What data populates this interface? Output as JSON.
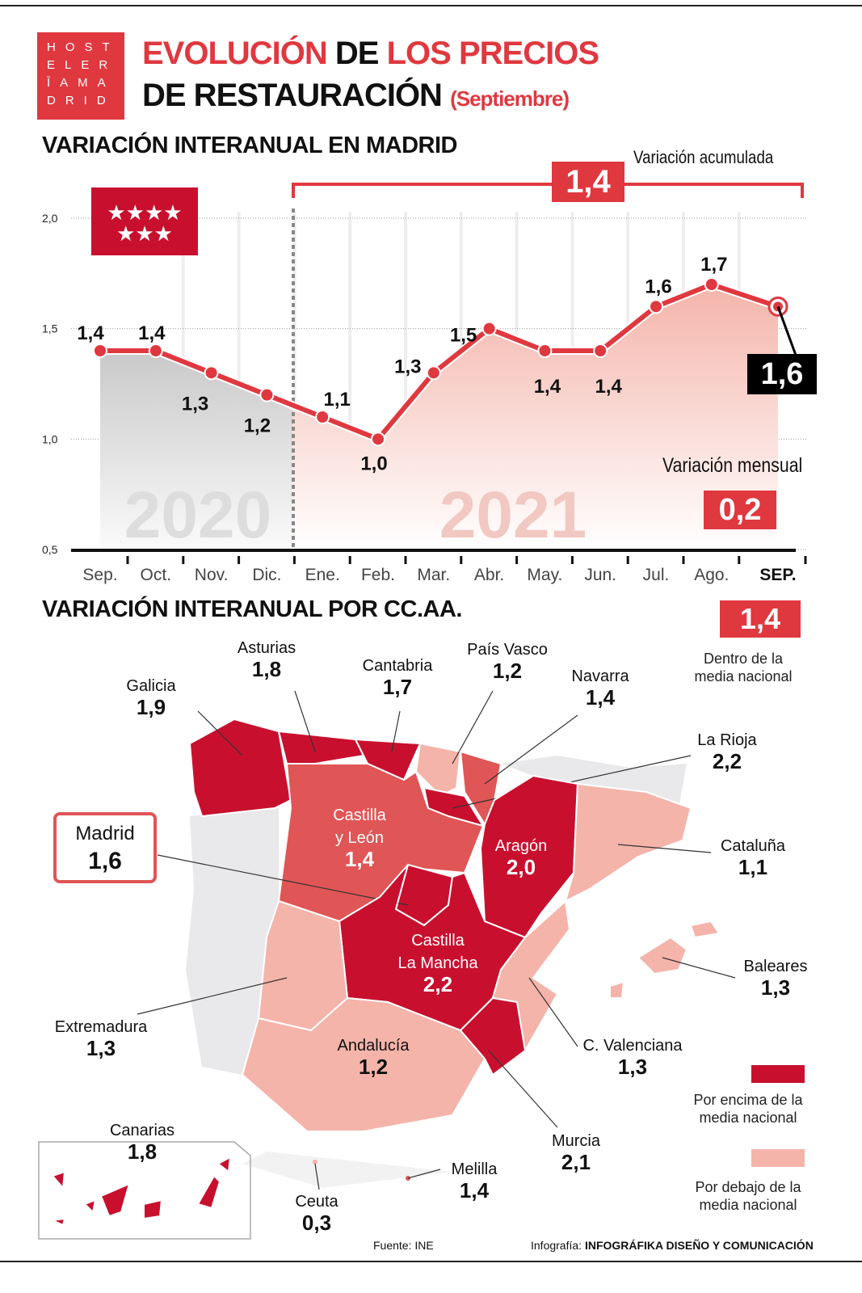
{
  "logo": {
    "lines": [
      "HOST",
      "ELER",
      "ĪAMA",
      "DRID"
    ]
  },
  "title": {
    "part1": "EVOLUCIÓN",
    "part2": "DE",
    "part3": "LOS PRECIOS",
    "line2": "DE RESTAURACIÓN",
    "month": "(Septiembre)"
  },
  "madrid_section": {
    "title": "VARIACIÓN INTERANUAL EN MADRID",
    "accumulated_label": "Variación acumulada",
    "accumulated_value": "1,4",
    "monthly_label": "Variación mensual",
    "monthly_value": "0,2",
    "current_value": "1,6",
    "year_labels": [
      "2020",
      "2021"
    ]
  },
  "chart_data": {
    "type": "line",
    "title": "VARIACIÓN INTERANUAL EN MADRID",
    "categories": [
      "Sep.",
      "Oct.",
      "Nov.",
      "Dic.",
      "Ene.",
      "Feb.",
      "Mar.",
      "Abr.",
      "May.",
      "Jun.",
      "Jul.",
      "Ago.",
      "SEP."
    ],
    "values": [
      1.4,
      1.4,
      1.3,
      1.2,
      1.1,
      1.0,
      1.3,
      1.5,
      1.4,
      1.4,
      1.6,
      1.7,
      1.6
    ],
    "data_labels": [
      "1,4",
      "1,4",
      "1,3",
      "1,2",
      "1,1",
      "1,0",
      "1,3",
      "1,5",
      "1,4",
      "1,4",
      "1,6",
      "1,7",
      "1,6"
    ],
    "yticks": [
      "0,5",
      "1,0",
      "1,5",
      "2,0"
    ],
    "ylim": [
      0.5,
      2.0
    ],
    "grid": true,
    "colors": {
      "line": "#e0383f",
      "area2020": "#c9c9c9",
      "area2021": "#f4b4aa"
    }
  },
  "regions_section": {
    "title": "VARIACIÓN INTERANUAL POR CC.AA.",
    "national_value": "1,4",
    "national_label": "Dentro de la media nacional",
    "legend": [
      {
        "label": "Por encima de la media nacional",
        "color": "#c8102e"
      },
      {
        "label": "Por debajo de la media nacional",
        "color": "#f4b4aa"
      }
    ],
    "regions": [
      {
        "name": "Galicia",
        "value": "1,9",
        "level": "above"
      },
      {
        "name": "Asturias",
        "value": "1,8",
        "level": "above"
      },
      {
        "name": "Cantabria",
        "value": "1,7",
        "level": "above"
      },
      {
        "name": "País Vasco",
        "value": "1,2",
        "level": "below"
      },
      {
        "name": "Navarra",
        "value": "1,4",
        "level": "equal"
      },
      {
        "name": "La Rioja",
        "value": "2,2",
        "level": "above"
      },
      {
        "name": "Castilla y León",
        "value": "1,4",
        "level": "equal"
      },
      {
        "name": "Aragón",
        "value": "2,0",
        "level": "above"
      },
      {
        "name": "Cataluña",
        "value": "1,1",
        "level": "below"
      },
      {
        "name": "Madrid",
        "value": "1,6",
        "level": "above"
      },
      {
        "name": "Castilla La Mancha",
        "value": "2,2",
        "level": "above"
      },
      {
        "name": "Extremadura",
        "value": "1,3",
        "level": "below"
      },
      {
        "name": "Baleares",
        "value": "1,3",
        "level": "below"
      },
      {
        "name": "Andalucía",
        "value": "1,2",
        "level": "below"
      },
      {
        "name": "C. Valenciana",
        "value": "1,3",
        "level": "below"
      },
      {
        "name": "Murcia",
        "value": "2,1",
        "level": "above"
      },
      {
        "name": "Canarias",
        "value": "1,8",
        "level": "above"
      },
      {
        "name": "Ceuta",
        "value": "0,3",
        "level": "below"
      },
      {
        "name": "Melilla",
        "value": "1,4",
        "level": "equal"
      }
    ]
  },
  "footer": {
    "source": "Fuente: INE",
    "credit_prefix": "Infografía:",
    "credit": "INFOGRÁFIKA DISEÑO Y COMUNICACIÓN"
  }
}
